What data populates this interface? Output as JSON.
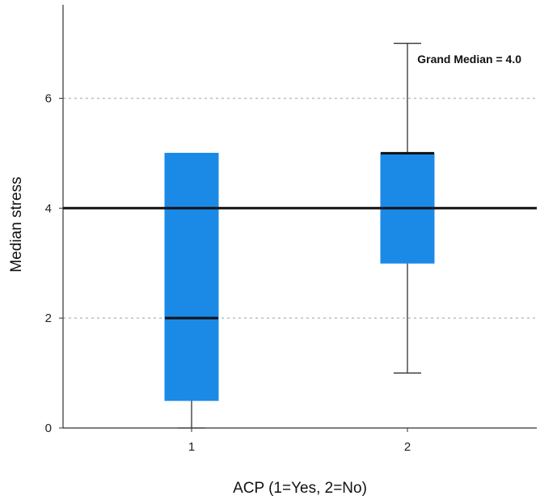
{
  "chart_data": {
    "type": "boxplot",
    "xlabel": "ACP (1=Yes, 2=No)",
    "ylabel": "Median stress",
    "categories": [
      "1",
      "2"
    ],
    "ylim": [
      0,
      7.7
    ],
    "yticks": [
      0,
      2,
      4,
      6
    ],
    "grid": "horizontal dotted",
    "reference_line": {
      "value": 4.0,
      "label": "Grand Median = 4.0"
    },
    "boxes": [
      {
        "category": "1",
        "min": 0,
        "q1": 0.5,
        "median": 2,
        "q3": 5,
        "max": 5
      },
      {
        "category": "2",
        "min": 1,
        "q1": 3,
        "median": 5,
        "q3": 5,
        "max": 7
      }
    ],
    "colors": {
      "box_fill": "#1a8ae6",
      "median_line": "#111111",
      "whisker": "#333333",
      "grid": "#bfbfbf",
      "reference_line": "#111111"
    }
  }
}
